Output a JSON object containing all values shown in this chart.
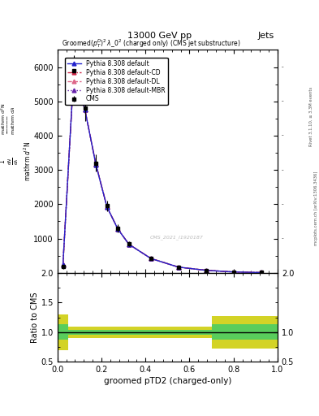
{
  "title_top": "13000 GeV pp",
  "title_right": "Jets",
  "plot_title": "Groomed$(p_T^D)^2\\,\\lambda\\_0^2$ (charged only) (CMS jet substructure)",
  "xlabel": "groomed pTD2 (charged-only)",
  "ylabel_ratio": "Ratio to CMS",
  "right_label": "Rivet 3.1.10, ≥ 3.3M events",
  "right_label2": "mcplots.cern.ch [arXiv:1306.3436]",
  "watermark": "CMS_2021_I1920187",
  "x_data": [
    0.025,
    0.075,
    0.125,
    0.175,
    0.225,
    0.275,
    0.325,
    0.425,
    0.55,
    0.675,
    0.8,
    0.925
  ],
  "cms_y": [
    180,
    5900,
    4800,
    3200,
    1950,
    1300,
    850,
    430,
    170,
    75,
    25,
    8
  ],
  "cms_yerr": [
    60,
    450,
    370,
    250,
    160,
    110,
    70,
    40,
    20,
    12,
    6,
    3
  ],
  "pythia_default_y": [
    230,
    5950,
    4750,
    3150,
    1920,
    1270,
    830,
    415,
    165,
    72,
    24,
    7
  ],
  "pythia_cd_y": [
    225,
    5930,
    4760,
    3160,
    1925,
    1275,
    832,
    417,
    166,
    73,
    24.5,
    7.2
  ],
  "pythia_dl_y": [
    228,
    5940,
    4755,
    3155,
    1922,
    1272,
    831,
    416,
    165.5,
    72.5,
    24.2,
    7.1
  ],
  "pythia_mbr_y": [
    229,
    5945,
    4758,
    3158,
    1924,
    1274,
    831.5,
    416.5,
    165.8,
    72.8,
    24.3,
    7.15
  ],
  "ylim_main": [
    0,
    6500
  ],
  "ylim_ratio": [
    0.5,
    2.0
  ],
  "yticks_main": [
    1000,
    2000,
    3000,
    4000,
    5000,
    6000
  ],
  "color_default": "#2222CC",
  "color_cd": "#CC2244",
  "color_dl": "#DD6688",
  "color_mbr": "#6622AA",
  "color_cms": "#000000",
  "color_green": "#44CC66",
  "color_yellow": "#CCCC00",
  "band_edges": [
    0.0,
    0.05,
    0.1,
    0.3,
    0.5,
    0.7,
    0.8,
    1.0
  ],
  "yellow_low": [
    0.7,
    0.9,
    0.9,
    0.9,
    0.9,
    0.73,
    0.73
  ],
  "yellow_high": [
    1.3,
    1.1,
    1.1,
    1.1,
    1.1,
    1.27,
    1.27
  ],
  "green_low": [
    0.87,
    0.96,
    0.96,
    0.96,
    0.96,
    0.87,
    0.87
  ],
  "green_high": [
    1.13,
    1.04,
    1.04,
    1.04,
    1.04,
    1.13,
    1.13
  ]
}
